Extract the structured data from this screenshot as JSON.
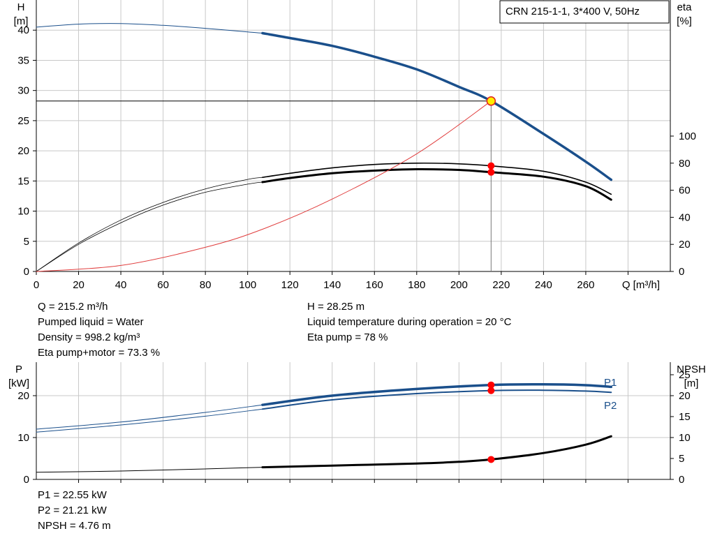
{
  "legend_box": {
    "text": "CRN 215-1-1, 3*400 V, 50Hz"
  },
  "colors": {
    "curve_blue": "#1a4f8b",
    "system_red": "#e03c3c",
    "operating_point_fill": "#ffee00",
    "operating_point_stroke": "#e02020",
    "marker_red": "#ff0000",
    "grid": "#c8c8c8"
  },
  "chart_data": [
    {
      "type": "line",
      "id": "head-eta",
      "left_axis": {
        "label_line1": "H",
        "label_line2": "[m]",
        "range": [
          0,
          45
        ],
        "ticks": [
          0,
          5,
          10,
          15,
          20,
          25,
          30,
          35,
          40
        ]
      },
      "right_axis": {
        "label_line1": "eta",
        "label_line2": "[%]",
        "range": [
          0,
          100
        ],
        "ticks": [
          0,
          20,
          40,
          60,
          80,
          100
        ]
      },
      "x_axis": {
        "label": "Q [m³/h]",
        "range": [
          0,
          300
        ],
        "ticks": [
          0,
          20,
          40,
          60,
          80,
          100,
          120,
          140,
          160,
          180,
          200,
          220,
          240,
          260
        ]
      },
      "grid": true,
      "operating_point": {
        "q": 215.2,
        "h": 28.25
      },
      "series": [
        {
          "id": "head",
          "axis": "left",
          "x": [
            0,
            20,
            40,
            60,
            80,
            100,
            107
          ],
          "y": [
            40.5,
            41.0,
            41.1,
            40.8,
            40.3,
            39.7,
            39.5
          ]
        },
        {
          "id": "head",
          "axis": "left",
          "x": [
            107,
            120,
            140,
            160,
            180,
            200,
            215.2,
            240,
            260,
            272
          ],
          "y": [
            39.5,
            38.7,
            37.4,
            35.6,
            33.5,
            30.6,
            28.25,
            22.8,
            18.2,
            15.2
          ]
        },
        {
          "id": "eta-pump",
          "axis": "right",
          "x": [
            0,
            20,
            40,
            60,
            80,
            100,
            107
          ],
          "y": [
            0,
            21,
            38,
            51,
            61,
            68,
            69.5
          ]
        },
        {
          "id": "eta-pump",
          "axis": "right",
          "x": [
            107,
            120,
            140,
            160,
            180,
            200,
            215.2,
            240,
            260,
            272
          ],
          "y": [
            69.5,
            72.5,
            76.5,
            79,
            80,
            79.5,
            78,
            74,
            66,
            57
          ]
        },
        {
          "id": "eta-pump-motor",
          "axis": "right",
          "x": [
            0,
            20,
            40,
            60,
            80,
            100,
            107
          ],
          "y": [
            0,
            20,
            36,
            49,
            58.5,
            64.5,
            66
          ]
        },
        {
          "id": "eta-pump-motor",
          "axis": "right",
          "x": [
            107,
            120,
            140,
            160,
            180,
            200,
            215.2,
            240,
            260,
            272
          ],
          "y": [
            66,
            69,
            72.5,
            74.5,
            75.5,
            75,
            73.3,
            70,
            63,
            53
          ]
        },
        {
          "id": "system-curve",
          "axis": "left",
          "x": [
            0,
            40,
            80,
            107,
            140,
            180,
            215.2
          ],
          "y": [
            0,
            1,
            4,
            7,
            12,
            19.5,
            28.25
          ]
        }
      ],
      "markers": [
        {
          "axis": "right",
          "x": 215.2,
          "y": 78
        },
        {
          "axis": "right",
          "x": 215.2,
          "y": 73.3
        }
      ]
    },
    {
      "type": "line",
      "id": "power-npsh",
      "left_axis": {
        "label_line1": "P",
        "label_line2": "[kW]",
        "range": [
          0,
          28
        ],
        "ticks": [
          0,
          10,
          20
        ]
      },
      "right_axis": {
        "label_line1": "NPSH",
        "label_line2": "[m]",
        "range": [
          0,
          28
        ],
        "ticks": [
          0,
          5,
          10,
          15,
          20,
          25
        ]
      },
      "x_axis": {
        "range": [
          0,
          300
        ]
      },
      "grid": true,
      "series": [
        {
          "id": "P1",
          "name": "P1",
          "axis": "left",
          "x": [
            0,
            40,
            80,
            107
          ],
          "y": [
            12.0,
            13.7,
            16.0,
            17.8
          ]
        },
        {
          "id": "P1",
          "name": "P1",
          "axis": "left",
          "x": [
            107,
            140,
            180,
            215.2,
            240,
            260,
            272
          ],
          "y": [
            17.8,
            20.0,
            21.6,
            22.55,
            22.7,
            22.5,
            22.1
          ]
        },
        {
          "id": "P2",
          "name": "P2",
          "axis": "left",
          "x": [
            0,
            40,
            80,
            107
          ],
          "y": [
            11.3,
            13.0,
            15.1,
            16.8
          ]
        },
        {
          "id": "P2",
          "name": "P2",
          "axis": "left",
          "x": [
            107,
            140,
            180,
            215.2,
            240,
            260,
            272
          ],
          "y": [
            16.8,
            19.0,
            20.5,
            21.21,
            21.3,
            21.1,
            20.8
          ]
        },
        {
          "id": "NPSH",
          "axis": "right",
          "x": [
            0,
            40,
            80,
            107
          ],
          "y": [
            1.7,
            2.0,
            2.5,
            2.9
          ]
        },
        {
          "id": "NPSH",
          "axis": "right",
          "x": [
            107,
            140,
            180,
            200,
            215.2,
            240,
            260,
            272
          ],
          "y": [
            2.9,
            3.3,
            3.8,
            4.2,
            4.76,
            6.3,
            8.3,
            10.3
          ]
        }
      ],
      "markers": [
        {
          "axis": "left",
          "x": 215.2,
          "y": 22.55
        },
        {
          "axis": "left",
          "x": 215.2,
          "y": 21.21
        },
        {
          "axis": "right",
          "x": 215.2,
          "y": 4.76
        }
      ]
    }
  ],
  "info_top_left": [
    "Q = 215.2 m³/h",
    "Pumped liquid = Water",
    "Density = 998.2 kg/m³",
    "Eta pump+motor = 73.3 %"
  ],
  "info_top_right": [
    "H = 28.25 m",
    "Liquid temperature during operation = 20 °C",
    "Eta pump = 78 %"
  ],
  "info_bottom": [
    "P1 = 22.55 kW",
    "P2 = 21.21 kW",
    "NPSH = 4.76 m"
  ]
}
